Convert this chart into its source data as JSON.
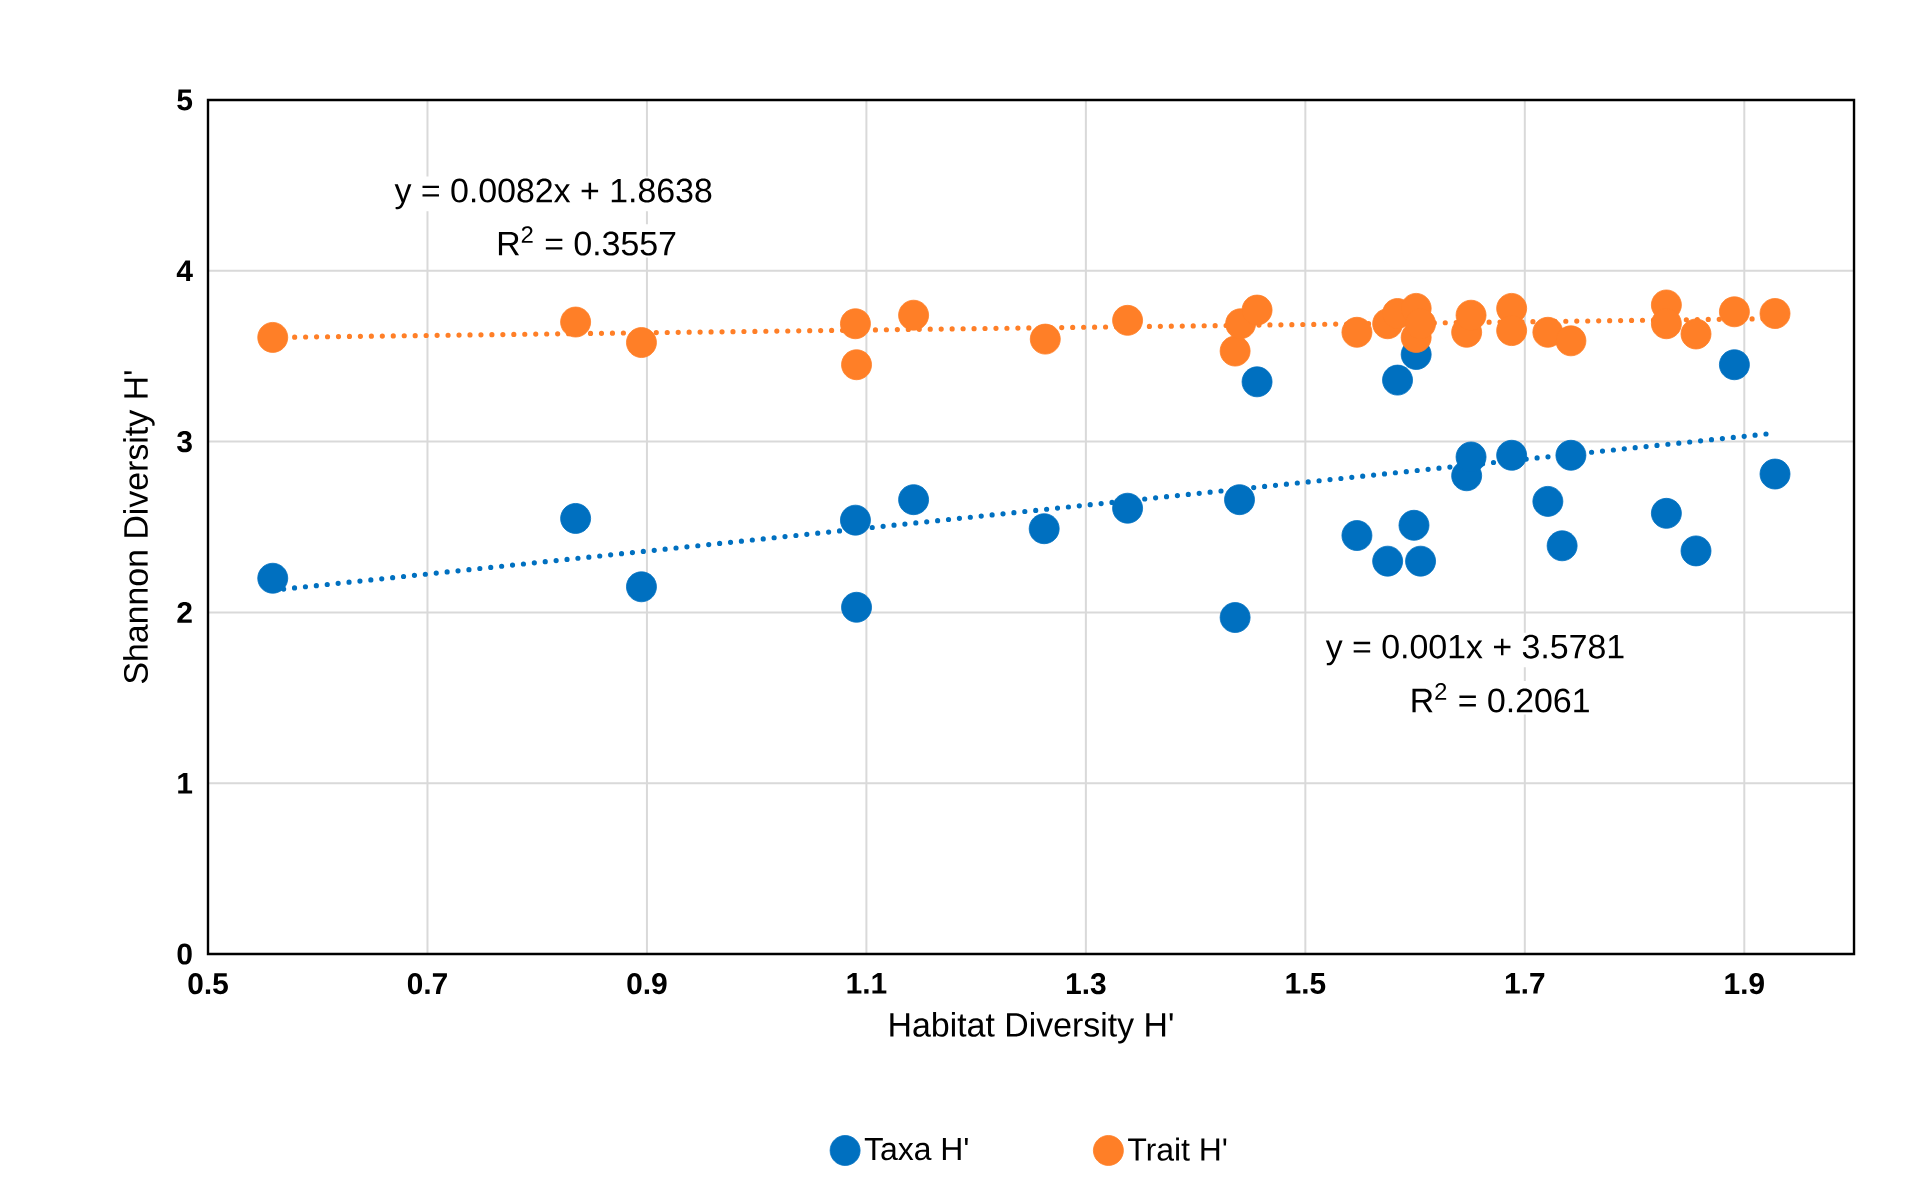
{
  "chart_data": {
    "type": "scatter",
    "xlabel": "Habitat Diversity H'",
    "ylabel": "Shannon Diversity H'",
    "xlim": [
      0.5,
      2.0
    ],
    "xticks": [
      0.5,
      0.7,
      0.9,
      1.1,
      1.3,
      1.5,
      1.7,
      1.9
    ],
    "ylim": [
      0,
      5
    ],
    "yticks": [
      0,
      1,
      2,
      3,
      4,
      5
    ],
    "grid": true,
    "legend": "bottom",
    "annotations": [
      "y = 0.0082x + 1.8638",
      "R$^{2}$ = 0.3557",
      "y = 0.001x + 3.5781",
      "R$^{2}$ = 0.2061"
    ],
    "series": [
      {
        "name": "Taxa H'",
        "marker": "circle",
        "color": "#0070c0",
        "x": [
          0.559,
          0.835,
          0.895,
          1.09,
          1.091,
          1.143,
          1.262,
          1.338,
          1.44,
          1.436,
          1.456,
          1.547,
          1.575,
          1.599,
          1.605,
          1.584,
          1.601,
          1.647,
          1.651,
          1.688,
          1.742,
          1.721,
          1.734,
          1.829,
          1.856,
          1.891,
          1.928
        ],
        "values": [
          2.2,
          2.55,
          2.15,
          2.54,
          2.03,
          2.66,
          2.49,
          2.61,
          2.66,
          1.97,
          3.35,
          2.45,
          2.3,
          2.51,
          2.3,
          3.36,
          3.51,
          2.8,
          2.91,
          2.92,
          2.92,
          2.65,
          2.39,
          2.58,
          2.36,
          3.45,
          2.81
        ]
      },
      {
        "name": "Trait H'",
        "marker": "circle",
        "color": "#ff7f27",
        "x": [
          0.559,
          0.835,
          0.895,
          1.09,
          1.091,
          1.143,
          1.263,
          1.338,
          1.436,
          1.441,
          1.456,
          1.547,
          1.575,
          1.584,
          1.601,
          1.601,
          1.605,
          1.647,
          1.651,
          1.688,
          1.688,
          1.721,
          1.734,
          1.742,
          1.829,
          1.829,
          1.856,
          1.891,
          1.928
        ],
        "values": [
          3.61,
          3.7,
          3.58,
          3.69,
          3.45,
          3.74,
          3.6,
          3.71,
          3.53,
          3.69,
          3.77,
          3.64,
          3.69,
          3.75,
          3.78,
          3.61,
          3.69,
          3.64,
          3.74,
          3.78,
          3.65,
          3.64,
          null,
          3.59,
          3.8,
          3.69,
          3.63,
          3.76,
          3.75
        ]
      },
      {
        "type": "line",
        "marker": "none",
        "line_style": "dotted",
        "color": "#0070c0",
        "x": [
          0.559,
          1.928
        ],
        "values": [
          2.13,
          3.05
        ]
      },
      {
        "type": "line",
        "marker": "none",
        "line_style": "dotted",
        "color": "#ff7f27",
        "x": [
          0.559,
          1.928
        ],
        "values": [
          3.61,
          3.72
        ]
      }
    ]
  }
}
